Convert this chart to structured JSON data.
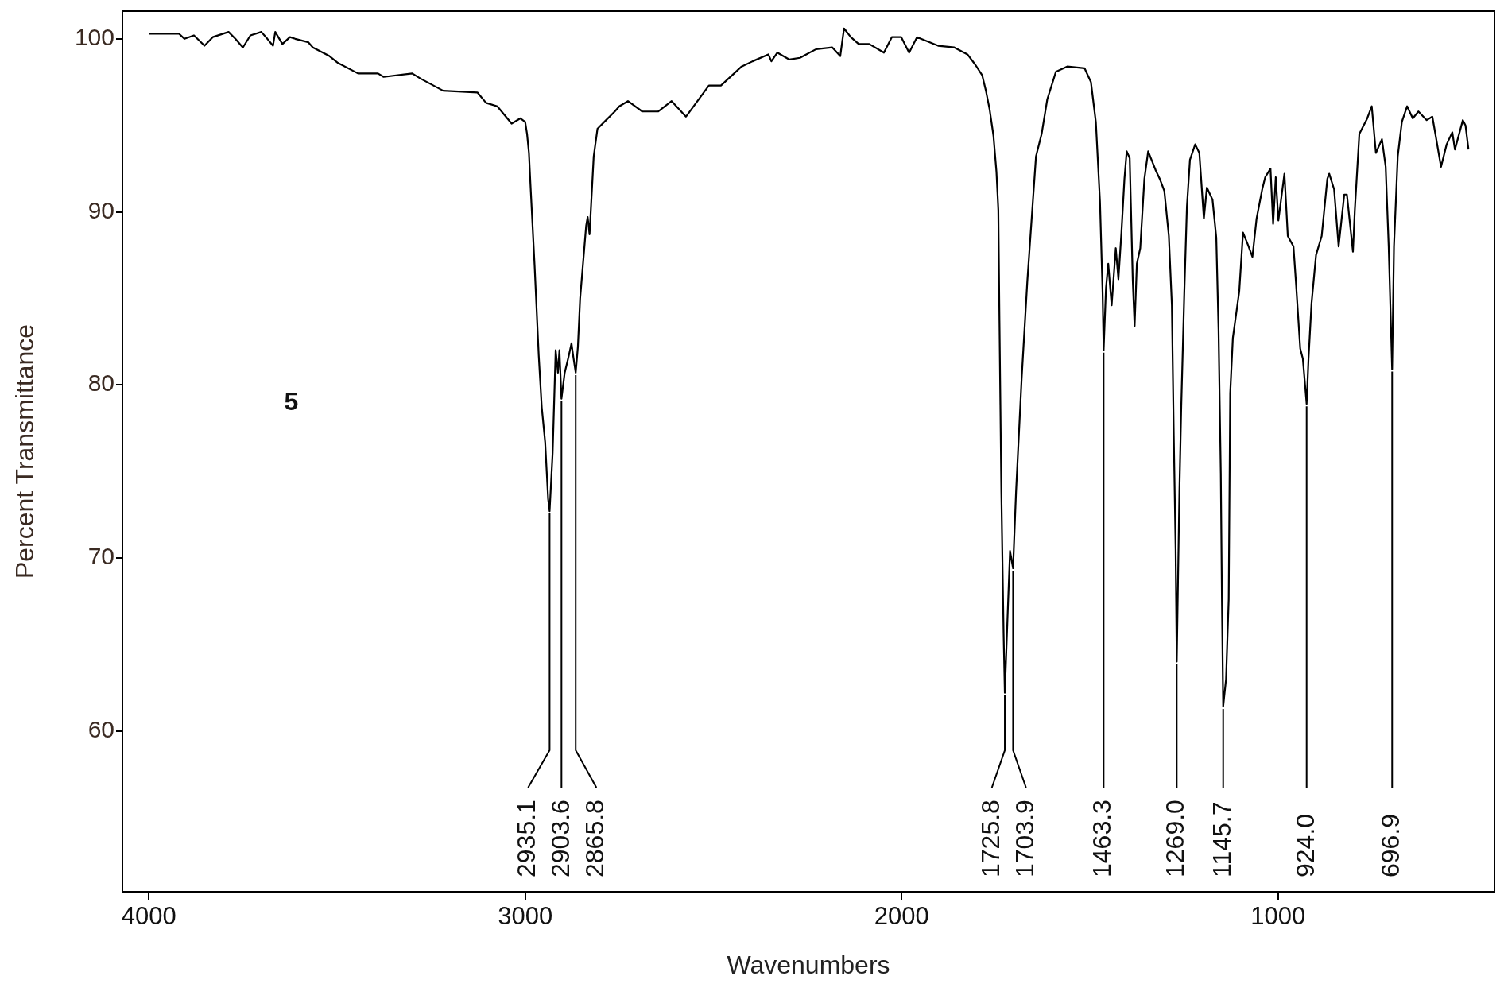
{
  "chart_data": {
    "type": "line",
    "xlabel": "Wavenumbers",
    "ylabel": "Percent Transmittance",
    "color": "#000000",
    "x": [
      4000,
      3920,
      3905,
      3880,
      3852,
      3830,
      3788,
      3770,
      3750,
      3730,
      3701,
      3685,
      3670,
      3664,
      3645,
      3625,
      3611,
      3576,
      3564,
      3520,
      3497,
      3444,
      3391,
      3376,
      3300,
      3278,
      3218,
      3127,
      3104,
      3074,
      3036,
      3013,
      3000,
      2995,
      2990,
      2986,
      2975,
      2964,
      2956,
      2947,
      2939,
      2935.1,
      2927,
      2919,
      2913,
      2909,
      2903.6,
      2895,
      2885,
      2877,
      2872,
      2865.8,
      2860,
      2854,
      2838,
      2834,
      2829,
      2818,
      2808,
      2785,
      2762,
      2750,
      2727,
      2689,
      2647,
      2611,
      2573,
      2512,
      2480,
      2425,
      2396,
      2354,
      2346,
      2330,
      2298,
      2270,
      2227,
      2184,
      2163,
      2153,
      2135,
      2114,
      2086,
      2047,
      2026,
      2001,
      1980,
      1959,
      1903,
      1860,
      1825,
      1804,
      1786,
      1776,
      1766,
      1756,
      1748,
      1743,
      1740,
      1735,
      1729,
      1725.8,
      1719,
      1712,
      1703.9,
      1696,
      1681,
      1666,
      1643,
      1628,
      1613,
      1590,
      1560,
      1514,
      1497,
      1484,
      1473,
      1466,
      1463.3,
      1457,
      1451,
      1442,
      1431,
      1424,
      1416,
      1408,
      1402,
      1394,
      1386,
      1381,
      1375,
      1366,
      1355,
      1345,
      1336,
      1325,
      1314,
      1302,
      1290,
      1282,
      1277,
      1272,
      1269,
      1262,
      1257,
      1249,
      1242,
      1234,
      1220,
      1209,
      1197,
      1189,
      1174,
      1164,
      1158,
      1152,
      1149,
      1145.7,
      1138,
      1131,
      1127,
      1120,
      1103,
      1093,
      1080,
      1068,
      1057,
      1042,
      1034,
      1020,
      1013,
      1006,
      999,
      983,
      974,
      959,
      952,
      941,
      934,
      924,
      919,
      911,
      899,
      884,
      869,
      864,
      851,
      839,
      824,
      817,
      801,
      796,
      784,
      763,
      751,
      740,
      724,
      714,
      706,
      696.9,
      692,
      682,
      671,
      657,
      642,
      627,
      605,
      590,
      582,
      567,
      552,
      537,
      530,
      509,
      502,
      494
    ],
    "values": [
      100.3,
      100.3,
      100.0,
      100.2,
      99.6,
      100.1,
      100.4,
      100.0,
      99.5,
      100.2,
      100.4,
      100.0,
      99.6,
      100.4,
      99.7,
      100.1,
      100.0,
      99.8,
      99.5,
      99.0,
      98.6,
      98.0,
      98.0,
      97.8,
      98.0,
      97.7,
      97.0,
      96.9,
      96.3,
      96.1,
      95.1,
      95.4,
      95.2,
      94.5,
      93.4,
      91.6,
      86.9,
      81.7,
      78.7,
      76.7,
      73.4,
      72.7,
      76.1,
      82.0,
      80.7,
      82.0,
      79.2,
      80.7,
      81.6,
      82.4,
      81.6,
      80.7,
      82.2,
      85.0,
      89.2,
      89.7,
      88.7,
      93.2,
      94.8,
      95.3,
      95.8,
      96.1,
      96.4,
      95.8,
      95.8,
      96.4,
      95.5,
      97.3,
      97.3,
      98.4,
      98.7,
      99.1,
      98.7,
      99.2,
      98.8,
      98.9,
      99.4,
      99.5,
      99.0,
      100.6,
      100.1,
      99.7,
      99.7,
      99.2,
      100.1,
      100.1,
      99.2,
      100.1,
      99.6,
      99.5,
      99.1,
      98.5,
      97.9,
      97.0,
      95.9,
      94.4,
      92.3,
      90.1,
      83.7,
      73.8,
      65.6,
      62.2,
      66.3,
      70.4,
      69.4,
      73.8,
      80.4,
      86.0,
      93.2,
      94.5,
      96.5,
      98.1,
      98.4,
      98.3,
      97.5,
      95.2,
      90.6,
      85.3,
      82.0,
      85.6,
      87.0,
      84.6,
      87.9,
      86.1,
      88.8,
      91.9,
      93.5,
      93.1,
      86.1,
      83.4,
      87.0,
      87.9,
      91.9,
      93.5,
      93.0,
      92.4,
      91.9,
      91.2,
      88.6,
      84.6,
      77.1,
      70.5,
      64.0,
      73.8,
      78.8,
      85.3,
      90.3,
      93.0,
      93.9,
      93.4,
      89.6,
      91.4,
      90.7,
      88.5,
      83.2,
      74.9,
      67.6,
      61.4,
      63.0,
      67.6,
      79.5,
      82.7,
      85.4,
      88.8,
      88.1,
      87.4,
      89.6,
      91.3,
      92.0,
      92.5,
      89.3,
      92.0,
      89.5,
      92.2,
      88.6,
      88.0,
      85.8,
      82.1,
      81.5,
      78.9,
      81.5,
      84.7,
      87.5,
      88.6,
      91.9,
      92.2,
      91.3,
      88.0,
      91.0,
      91.0,
      87.7,
      90.1,
      94.5,
      95.4,
      96.1,
      93.4,
      94.2,
      92.6,
      88.0,
      80.9,
      88.0,
      93.2,
      95.2,
      96.1,
      95.4,
      95.8,
      95.3,
      95.5,
      94.5,
      92.6,
      93.9,
      94.6,
      93.6,
      95.3,
      95.0,
      93.6
    ],
    "xlim": [
      4070,
      425
    ],
    "ylim": [
      50.7,
      101.6
    ],
    "xticks": [
      4000,
      3000,
      2000,
      1000
    ],
    "yticks": [
      60,
      70,
      80,
      90,
      100
    ],
    "annotations": [
      {
        "text": "2935.1",
        "x": 2935.1,
        "y": 72.7
      },
      {
        "text": "2903.6",
        "x": 2903.6,
        "y": 79.2
      },
      {
        "text": "2865.8",
        "x": 2865.8,
        "y": 80.7
      },
      {
        "text": "1725.8",
        "x": 1725.8,
        "y": 62.2
      },
      {
        "text": "1703.9",
        "x": 1703.9,
        "y": 69.4
      },
      {
        "text": "1463.3",
        "x": 1463.3,
        "y": 82.0
      },
      {
        "text": "1269.0",
        "x": 1269,
        "y": 64.0
      },
      {
        "text": "1145.7",
        "x": 1145.7,
        "y": 61.4
      },
      {
        "text": "924.0",
        "x": 924,
        "y": 78.9
      },
      {
        "text": "696.9",
        "x": 696.9,
        "y": 80.9
      },
      "5"
    ]
  }
}
